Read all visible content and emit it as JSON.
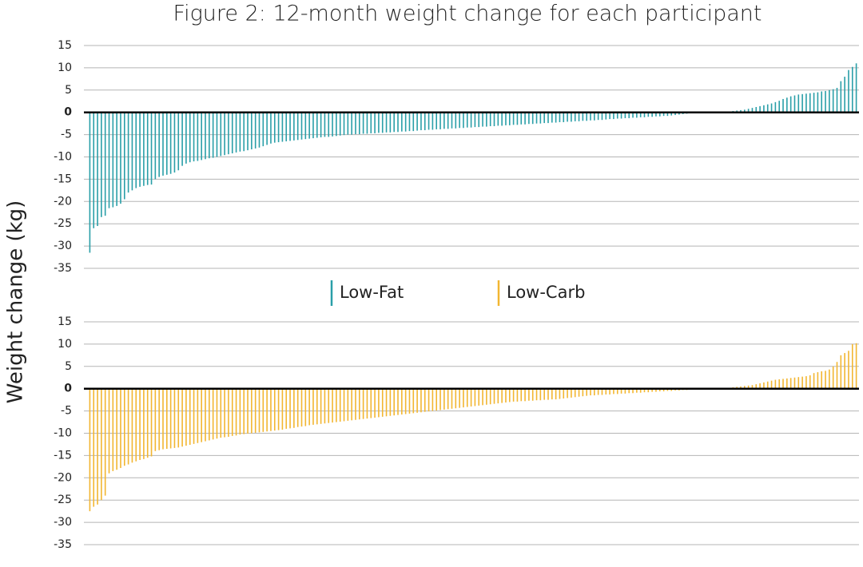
{
  "chart_data": {
    "type": "bar",
    "title": "Figure 2: 12-month weight change for each participant",
    "y_label": "Weight change (kg)",
    "ylim": [
      -35,
      15
    ],
    "yticks": [
      15,
      10,
      5,
      0,
      -5,
      -10,
      -15,
      -20,
      -25,
      -30,
      -35
    ],
    "grid": true,
    "series": [
      {
        "name": "Low-Fat",
        "color": "#2a9fa8",
        "values": [
          -31.5,
          -26,
          -25.5,
          -23.5,
          -23.2,
          -21.5,
          -21.3,
          -21,
          -20.5,
          -19.5,
          -18,
          -17.5,
          -17,
          -16.7,
          -16.5,
          -16.3,
          -16.2,
          -15,
          -14.5,
          -14.2,
          -14,
          -13.8,
          -13.5,
          -13,
          -12,
          -11.5,
          -11.2,
          -11,
          -10.9,
          -10.7,
          -10.5,
          -10.3,
          -10.2,
          -10,
          -9.8,
          -9.6,
          -9.4,
          -9.2,
          -9,
          -8.8,
          -8.7,
          -8.5,
          -8.3,
          -8.1,
          -7.9,
          -7.6,
          -7.3,
          -7,
          -6.8,
          -6.7,
          -6.6,
          -6.5,
          -6.4,
          -6.3,
          -6.2,
          -6.1,
          -6,
          -5.9,
          -5.8,
          -5.7,
          -5.6,
          -5.5,
          -5.5,
          -5.4,
          -5.3,
          -5.2,
          -5.1,
          -5,
          -5,
          -4.9,
          -4.9,
          -4.8,
          -4.8,
          -4.7,
          -4.7,
          -4.6,
          -4.6,
          -4.5,
          -4.5,
          -4.4,
          -4.4,
          -4.3,
          -4.3,
          -4.2,
          -4.2,
          -4.1,
          -4,
          -4,
          -3.9,
          -3.9,
          -3.8,
          -3.8,
          -3.7,
          -3.7,
          -3.6,
          -3.6,
          -3.5,
          -3.5,
          -3.4,
          -3.4,
          -3.3,
          -3.3,
          -3.2,
          -3.2,
          -3.1,
          -3.1,
          -3,
          -3,
          -2.9,
          -2.9,
          -2.8,
          -2.8,
          -2.7,
          -2.7,
          -2.6,
          -2.6,
          -2.5,
          -2.5,
          -2.4,
          -2.4,
          -2.3,
          -2.3,
          -2.2,
          -2.2,
          -2.1,
          -2.1,
          -2,
          -2,
          -1.9,
          -1.9,
          -1.8,
          -1.8,
          -1.7,
          -1.7,
          -1.6,
          -1.5,
          -1.5,
          -1.4,
          -1.4,
          -1.3,
          -1.3,
          -1.2,
          -1.2,
          -1.1,
          -1.1,
          -1,
          -1,
          -0.9,
          -0.9,
          -0.8,
          -0.8,
          -0.7,
          -0.6,
          -0.5,
          -0.4,
          -0.3,
          0,
          0,
          0,
          0,
          0,
          0,
          0,
          0,
          0,
          0,
          0,
          0.3,
          0.4,
          0.5,
          0.6,
          0.8,
          1,
          1.2,
          1.4,
          1.6,
          1.8,
          2,
          2.3,
          2.6,
          3,
          3.3,
          3.6,
          3.8,
          4,
          4.1,
          4.2,
          4.3,
          4.4,
          4.5,
          4.7,
          4.8,
          5,
          5.2,
          5.5,
          7,
          8,
          9.5,
          10.2,
          11
        ]
      },
      {
        "name": "Low-Carb",
        "color": "#f2b631",
        "values": [
          -27.5,
          -26.5,
          -26,
          -25,
          -24,
          -19,
          -18.5,
          -18.2,
          -17.8,
          -17.3,
          -17,
          -16.6,
          -16.3,
          -16,
          -15.8,
          -15.5,
          -15.2,
          -14,
          -13.8,
          -13.6,
          -13.5,
          -13.4,
          -13.3,
          -13.2,
          -13,
          -12.8,
          -12.6,
          -12.4,
          -12.2,
          -12,
          -11.8,
          -11.6,
          -11.4,
          -11.2,
          -11,
          -10.9,
          -10.8,
          -10.6,
          -10.5,
          -10.3,
          -10.2,
          -10.1,
          -10,
          -9.9,
          -9.8,
          -9.7,
          -9.6,
          -9.5,
          -9.4,
          -9.3,
          -9.2,
          -9,
          -8.9,
          -8.8,
          -8.6,
          -8.5,
          -8.4,
          -8.2,
          -8.1,
          -8,
          -7.9,
          -7.8,
          -7.7,
          -7.6,
          -7.5,
          -7.4,
          -7.3,
          -7.2,
          -7.1,
          -7,
          -6.9,
          -6.8,
          -6.7,
          -6.6,
          -6.5,
          -6.4,
          -6.3,
          -6.2,
          -6.1,
          -6,
          -5.9,
          -5.8,
          -5.7,
          -5.6,
          -5.5,
          -5.4,
          -5.3,
          -5.2,
          -5.1,
          -5,
          -4.9,
          -4.8,
          -4.7,
          -4.6,
          -4.5,
          -4.4,
          -4.3,
          -4.2,
          -4.1,
          -4,
          -3.9,
          -3.8,
          -3.7,
          -3.6,
          -3.5,
          -3.4,
          -3.3,
          -3.2,
          -3.1,
          -3,
          -2.9,
          -2.9,
          -2.8,
          -2.8,
          -2.7,
          -2.7,
          -2.6,
          -2.6,
          -2.5,
          -2.5,
          -2.4,
          -2.4,
          -2.3,
          -2.2,
          -2.1,
          -2,
          -1.9,
          -1.8,
          -1.7,
          -1.6,
          -1.5,
          -1.5,
          -1.4,
          -1.4,
          -1.3,
          -1.3,
          -1.2,
          -1.2,
          -1.1,
          -1.1,
          -1,
          -1,
          -0.9,
          -0.9,
          -0.8,
          -0.8,
          -0.7,
          -0.7,
          -0.6,
          -0.6,
          -0.5,
          -0.5,
          -0.4,
          -0.4,
          -0.3,
          -0.3,
          0,
          0,
          0,
          0,
          0,
          0,
          0,
          0,
          0,
          0,
          0,
          0.3,
          0.4,
          0.5,
          0.6,
          0.7,
          0.8,
          1,
          1.2,
          1.4,
          1.6,
          1.8,
          2,
          2.1,
          2.2,
          2.3,
          2.4,
          2.5,
          2.6,
          2.7,
          2.8,
          3,
          3.5,
          3.7,
          3.9,
          4,
          4.3,
          5,
          6,
          7.5,
          8,
          8.5,
          10,
          10.2
        ]
      }
    ]
  }
}
